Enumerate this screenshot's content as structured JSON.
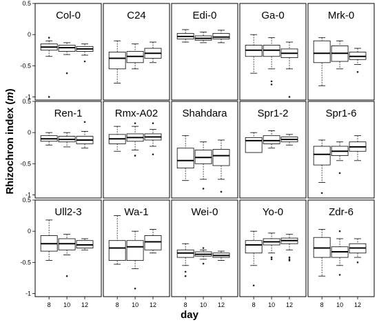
{
  "chart_data": {
    "type": "boxplot",
    "layout": "small-multiples 3x5",
    "xlabel": "day",
    "ylabel_prefix": "Rhizochron index (",
    "ylabel_symbol": "m",
    "ylabel_suffix": ")",
    "categories": [
      "8",
      "10",
      "12"
    ],
    "ylim": [
      -1.05,
      0.5
    ],
    "yticks": [
      0.5,
      0,
      -0.5,
      -1
    ],
    "ytick_labels": [
      "0.5",
      "0",
      "-0.5",
      "-1"
    ],
    "panels": [
      {
        "title": "Col-0",
        "boxes": [
          {
            "min": -0.35,
            "q1": -0.25,
            "median": -0.2,
            "q3": -0.15,
            "max": -0.1,
            "outliers": [
              -1.0,
              -0.05
            ]
          },
          {
            "min": -0.32,
            "q1": -0.27,
            "median": -0.21,
            "q3": -0.17,
            "max": -0.13,
            "outliers": [
              -0.62
            ]
          },
          {
            "min": -0.33,
            "q1": -0.27,
            "median": -0.23,
            "q3": -0.19,
            "max": -0.15,
            "outliers": [
              -0.43
            ]
          }
        ]
      },
      {
        "title": "C24",
        "boxes": [
          {
            "min": -0.78,
            "q1": -0.55,
            "median": -0.38,
            "q3": -0.28,
            "max": -0.1,
            "outliers": []
          },
          {
            "min": -0.55,
            "q1": -0.45,
            "median": -0.35,
            "q3": -0.27,
            "max": -0.15,
            "outliers": []
          },
          {
            "min": -0.45,
            "q1": -0.38,
            "median": -0.3,
            "q3": -0.22,
            "max": -0.12,
            "outliers": []
          }
        ]
      },
      {
        "title": "Edi-0",
        "boxes": [
          {
            "min": -0.12,
            "q1": -0.07,
            "median": -0.03,
            "q3": 0.02,
            "max": 0.08,
            "outliers": []
          },
          {
            "min": -0.13,
            "q1": -0.09,
            "median": -0.06,
            "q3": -0.02,
            "max": 0.04,
            "outliers": []
          },
          {
            "min": -0.13,
            "q1": -0.07,
            "median": -0.04,
            "q3": 0.02,
            "max": 0.07,
            "outliers": []
          }
        ]
      },
      {
        "title": "Ga-0",
        "boxes": [
          {
            "min": -0.62,
            "q1": -0.35,
            "median": -0.25,
            "q3": -0.17,
            "max": 0.0,
            "outliers": []
          },
          {
            "min": -0.55,
            "q1": -0.35,
            "median": -0.25,
            "q3": -0.17,
            "max": -0.05,
            "outliers": [
              -0.75,
              -0.8
            ]
          },
          {
            "min": -0.55,
            "q1": -0.37,
            "median": -0.3,
            "q3": -0.23,
            "max": -0.12,
            "outliers": [
              -1.0
            ]
          }
        ]
      },
      {
        "title": "Mrk-0",
        "boxes": [
          {
            "min": -0.82,
            "q1": -0.45,
            "median": -0.3,
            "q3": -0.1,
            "max": -0.05,
            "outliers": []
          },
          {
            "min": -0.55,
            "q1": -0.43,
            "median": -0.3,
            "q3": -0.18,
            "max": -0.1,
            "outliers": []
          },
          {
            "min": -0.48,
            "q1": -0.4,
            "median": -0.35,
            "q3": -0.28,
            "max": -0.22,
            "outliers": [
              -0.6
            ]
          }
        ]
      },
      {
        "title": "Ren-1",
        "boxes": [
          {
            "min": -0.2,
            "q1": -0.14,
            "median": -0.1,
            "q3": -0.05,
            "max": 0.0,
            "outliers": []
          },
          {
            "min": -0.23,
            "q1": -0.15,
            "median": -0.11,
            "q3": -0.06,
            "max": 0.0,
            "outliers": []
          },
          {
            "min": -0.25,
            "q1": -0.18,
            "median": -0.12,
            "q3": -0.06,
            "max": 0.02,
            "outliers": [
              0.17
            ]
          }
        ]
      },
      {
        "title": "Rmx-A02",
        "boxes": [
          {
            "min": -0.3,
            "q1": -0.18,
            "median": -0.1,
            "q3": -0.03,
            "max": 0.1,
            "outliers": []
          },
          {
            "min": -0.28,
            "q1": -0.14,
            "median": -0.08,
            "q3": -0.02,
            "max": 0.1,
            "outliers": [
              -0.37,
              0.15
            ]
          },
          {
            "min": -0.22,
            "q1": -0.12,
            "median": -0.07,
            "q3": -0.02,
            "max": 0.05,
            "outliers": [
              -0.35,
              0.15
            ]
          }
        ]
      },
      {
        "title": "Shahdara",
        "boxes": [
          {
            "min": -0.77,
            "q1": -0.57,
            "median": -0.45,
            "q3": -0.25,
            "max": -0.05,
            "outliers": []
          },
          {
            "min": -0.75,
            "q1": -0.5,
            "median": -0.4,
            "q3": -0.28,
            "max": -0.15,
            "outliers": [
              -0.9
            ]
          },
          {
            "min": -0.75,
            "q1": -0.53,
            "median": -0.37,
            "q3": -0.27,
            "max": -0.12,
            "outliers": [
              -0.95
            ]
          }
        ]
      },
      {
        "title": "Spr1-2",
        "boxes": [
          {
            "min": -0.32,
            "q1": -0.32,
            "median": -0.13,
            "q3": -0.08,
            "max": 0.0,
            "outliers": []
          },
          {
            "min": -0.25,
            "q1": -0.18,
            "median": -0.13,
            "q3": -0.05,
            "max": 0.03,
            "outliers": []
          },
          {
            "min": -0.2,
            "q1": -0.15,
            "median": -0.11,
            "q3": -0.07,
            "max": -0.03,
            "outliers": []
          }
        ]
      },
      {
        "title": "Spr1-6",
        "boxes": [
          {
            "min": -0.8,
            "q1": -0.52,
            "median": -0.35,
            "q3": -0.22,
            "max": -0.12,
            "outliers": [
              -0.97
            ]
          },
          {
            "min": -0.45,
            "q1": -0.37,
            "median": -0.3,
            "q3": -0.22,
            "max": -0.15,
            "outliers": [
              -0.65
            ]
          },
          {
            "min": -0.45,
            "q1": -0.3,
            "median": -0.23,
            "q3": -0.15,
            "max": -0.05,
            "outliers": []
          }
        ]
      },
      {
        "title": "Ull2-3",
        "boxes": [
          {
            "min": -0.47,
            "q1": -0.32,
            "median": -0.2,
            "q3": -0.07,
            "max": 0.18,
            "outliers": []
          },
          {
            "min": -0.38,
            "q1": -0.3,
            "median": -0.2,
            "q3": -0.12,
            "max": -0.05,
            "outliers": [
              -0.72
            ]
          },
          {
            "min": -0.3,
            "q1": -0.27,
            "median": -0.22,
            "q3": -0.15,
            "max": -0.12,
            "outliers": []
          }
        ]
      },
      {
        "title": "Wa-1",
        "boxes": [
          {
            "min": -0.53,
            "q1": -0.47,
            "median": -0.27,
            "q3": -0.15,
            "max": 0.25,
            "outliers": []
          },
          {
            "min": -0.6,
            "q1": -0.47,
            "median": -0.25,
            "q3": -0.15,
            "max": 0.0,
            "outliers": [
              -0.92
            ]
          },
          {
            "min": -0.35,
            "q1": -0.3,
            "median": -0.17,
            "q3": -0.07,
            "max": 0.03,
            "outliers": []
          }
        ]
      },
      {
        "title": "Wei-0",
        "boxes": [
          {
            "min": -0.55,
            "q1": -0.42,
            "median": -0.35,
            "q3": -0.3,
            "max": -0.2,
            "outliers": [
              -0.65,
              -0.72
            ]
          },
          {
            "min": -0.45,
            "q1": -0.4,
            "median": -0.37,
            "q3": -0.33,
            "max": -0.3,
            "outliers": [
              -0.27,
              -0.52
            ]
          },
          {
            "min": -0.47,
            "q1": -0.42,
            "median": -0.39,
            "q3": -0.35,
            "max": -0.32,
            "outliers": []
          }
        ]
      },
      {
        "title": "Yo-0",
        "boxes": [
          {
            "min": -0.55,
            "q1": -0.35,
            "median": -0.22,
            "q3": -0.15,
            "max": 0.0,
            "outliers": [
              -0.87
            ]
          },
          {
            "min": -0.35,
            "q1": -0.22,
            "median": -0.17,
            "q3": -0.12,
            "max": -0.03,
            "outliers": [
              -0.42,
              -0.45
            ]
          },
          {
            "min": -0.3,
            "q1": -0.2,
            "median": -0.15,
            "q3": -0.11,
            "max": -0.05,
            "outliers": [
              -0.42,
              -0.45,
              -0.47
            ]
          }
        ]
      },
      {
        "title": "Zdr-6",
        "boxes": [
          {
            "min": -0.72,
            "q1": -0.42,
            "median": -0.27,
            "q3": -0.1,
            "max": 0.03,
            "outliers": []
          },
          {
            "min": -0.55,
            "q1": -0.42,
            "median": -0.33,
            "q3": -0.25,
            "max": -0.12,
            "outliers": [
              -0.7,
              0.0
            ]
          },
          {
            "min": -0.42,
            "q1": -0.35,
            "median": -0.27,
            "q3": -0.2,
            "max": -0.12,
            "outliers": [
              -0.5
            ]
          }
        ]
      }
    ]
  }
}
